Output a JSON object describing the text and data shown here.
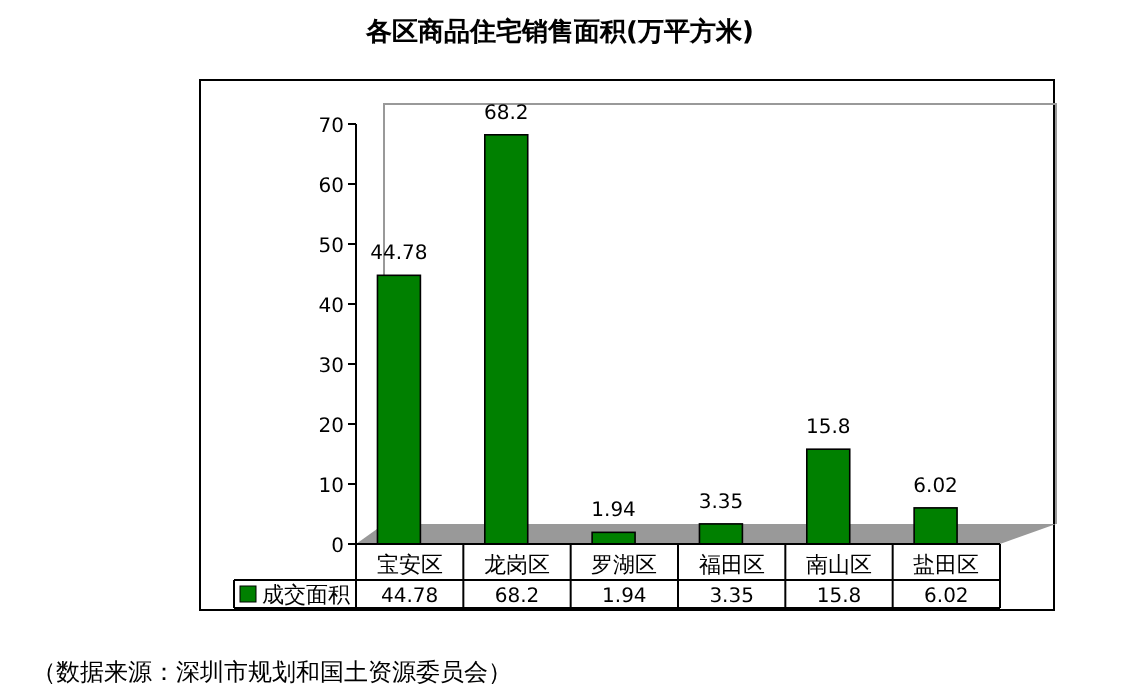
{
  "chart_data": {
    "type": "bar",
    "title": "各区商品住宅销售面积(万平方米)",
    "categories": [
      "宝安区",
      "龙岗区",
      "罗湖区",
      "福田区",
      "南山区",
      "盐田区"
    ],
    "series": [
      {
        "name": "成交面积",
        "color": "#008000",
        "values": [
          44.78,
          68.2,
          1.94,
          3.35,
          15.8,
          6.02
        ]
      }
    ],
    "ylim": [
      0,
      70
    ],
    "yticks": [
      0,
      10,
      20,
      30,
      40,
      50,
      60,
      70
    ],
    "data_labels": true,
    "legend": "bottom",
    "grid": false,
    "annotations": [
      "44.78",
      "68.2",
      "1.94",
      "3.35",
      "15.8",
      "6.02",
      "（数据来源：深圳市规划和国土资源委员会）"
    ]
  }
}
